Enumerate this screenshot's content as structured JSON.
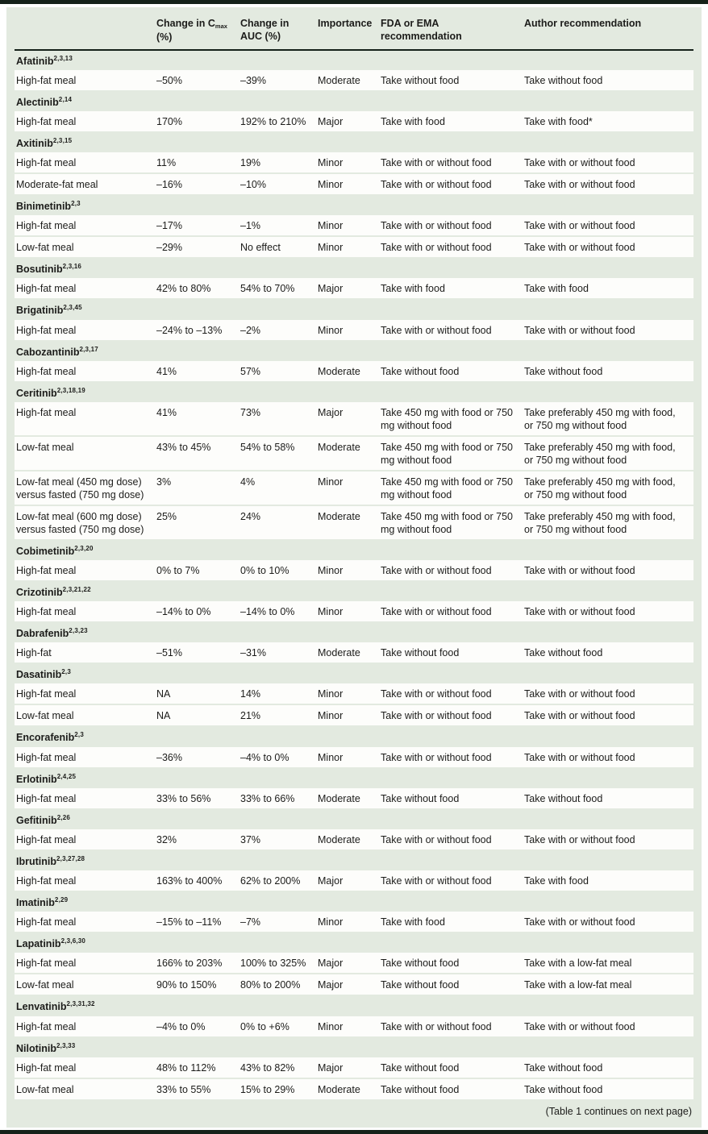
{
  "colors": {
    "page_bg": "#ffffff",
    "panel_bg": "#e3eae0",
    "row_bg": "#fdfdfb",
    "rule_dark": "#152119",
    "text": "#1c1c1a"
  },
  "table": {
    "header": {
      "cmax_prefix": "Change in C",
      "cmax_sub": "max",
      "cmax_line2": "(%)",
      "auc_line1": "Change in",
      "auc_line2": "AUC (%)",
      "importance": "Importance",
      "fda_line1": "FDA or EMA",
      "fda_line2": "recommendation",
      "author": "Author recommendation"
    },
    "footer_note": "(Table 1 continues on next page)",
    "groups": [
      {
        "drug": "Afatinib",
        "refs": "2,3,13",
        "rows": [
          {
            "label": "High-fat meal",
            "cmax": "–50%",
            "auc": "–39%",
            "importance": "Moderate",
            "fda": "Take without food",
            "author": "Take without food"
          }
        ]
      },
      {
        "drug": "Alectinib",
        "refs": "2,14",
        "rows": [
          {
            "label": "High-fat meal",
            "cmax": "170%",
            "auc": "192% to 210%",
            "importance": "Major",
            "fda": "Take with food",
            "author": "Take with food*"
          }
        ]
      },
      {
        "drug": "Axitinib",
        "refs": "2,3,15",
        "rows": [
          {
            "label": "High-fat meal",
            "cmax": "11%",
            "auc": "19%",
            "importance": "Minor",
            "fda": "Take with or without food",
            "author": "Take with or without food"
          },
          {
            "label": "Moderate-fat meal",
            "cmax": "–16%",
            "auc": "–10%",
            "importance": "Minor",
            "fda": "Take with or without food",
            "author": "Take with or without food"
          }
        ]
      },
      {
        "drug": "Binimetinib",
        "refs": "2,3",
        "rows": [
          {
            "label": "High-fat meal",
            "cmax": "–17%",
            "auc": "–1%",
            "importance": "Minor",
            "fda": "Take with or without food",
            "author": "Take with or without food"
          },
          {
            "label": "Low-fat meal",
            "cmax": "–29%",
            "auc": "No effect",
            "importance": "Minor",
            "fda": "Take with or without food",
            "author": "Take with or without food"
          }
        ]
      },
      {
        "drug": "Bosutinib",
        "refs": "2,3,16",
        "rows": [
          {
            "label": "High-fat meal",
            "cmax": "42% to 80%",
            "auc": "54% to 70%",
            "importance": "Major",
            "fda": "Take with food",
            "author": "Take with food"
          }
        ]
      },
      {
        "drug": "Brigatinib",
        "refs": "2,3,45",
        "rows": [
          {
            "label": "High-fat meal",
            "cmax": "–24% to –13%",
            "auc": "–2%",
            "importance": "Minor",
            "fda": "Take with or without food",
            "author": "Take with or without food"
          }
        ]
      },
      {
        "drug": "Cabozantinib",
        "refs": "2,3,17",
        "rows": [
          {
            "label": "High-fat meal",
            "cmax": "41%",
            "auc": "57%",
            "importance": "Moderate",
            "fda": "Take without food",
            "author": "Take without food"
          }
        ]
      },
      {
        "drug": "Ceritinib",
        "refs": "2,3,18,19",
        "rows": [
          {
            "label": "High-fat meal",
            "cmax": "41%",
            "auc": "73%",
            "importance": "Major",
            "fda": "Take 450 mg with food or 750 mg without food",
            "author": "Take preferably 450 mg with food, or 750 mg without food"
          },
          {
            "label": "Low-fat meal",
            "cmax": "43% to 45%",
            "auc": "54% to 58%",
            "importance": "Moderate",
            "fda": "Take 450 mg with food or 750 mg without food",
            "author": "Take preferably 450 mg with food, or 750 mg without food"
          },
          {
            "label": "Low-fat meal (450 mg dose) versus fasted (750 mg dose)",
            "cmax": "3%",
            "auc": "4%",
            "importance": "Minor",
            "fda": "Take 450 mg with food or 750 mg without food",
            "author": "Take preferably 450 mg with food, or 750 mg without food"
          },
          {
            "label": "Low-fat meal (600 mg dose) versus fasted (750 mg dose)",
            "cmax": "25%",
            "auc": "24%",
            "importance": "Moderate",
            "fda": "Take 450 mg with food or 750 mg without food",
            "author": "Take preferably 450 mg with food, or 750 mg without food"
          }
        ]
      },
      {
        "drug": "Cobimetinib",
        "refs": "2,3,20",
        "rows": [
          {
            "label": "High-fat meal",
            "cmax": "0% to 7%",
            "auc": "0% to 10%",
            "importance": "Minor",
            "fda": "Take with or without food",
            "author": "Take with or without food"
          }
        ]
      },
      {
        "drug": "Crizotinib",
        "refs": "2,3,21,22",
        "rows": [
          {
            "label": "High-fat meal",
            "cmax": "–14% to 0%",
            "auc": "–14% to 0%",
            "importance": "Minor",
            "fda": "Take with or without food",
            "author": "Take with or without food"
          }
        ]
      },
      {
        "drug": "Dabrafenib",
        "refs": "2,3,23",
        "rows": [
          {
            "label": "High-fat",
            "cmax": "–51%",
            "auc": "–31%",
            "importance": "Moderate",
            "fda": "Take without food",
            "author": "Take without food"
          }
        ]
      },
      {
        "drug": "Dasatinib",
        "refs": "2,3",
        "rows": [
          {
            "label": "High-fat meal",
            "cmax": "NA",
            "auc": "14%",
            "importance": "Minor",
            "fda": "Take with or without food",
            "author": "Take with or without food"
          },
          {
            "label": "Low-fat meal",
            "cmax": "NA",
            "auc": "21%",
            "importance": "Minor",
            "fda": "Take with or without food",
            "author": "Take with or without food"
          }
        ]
      },
      {
        "drug": "Encorafenib",
        "refs": "2,3",
        "rows": [
          {
            "label": "High-fat meal",
            "cmax": "–36%",
            "auc": "–4% to 0%",
            "importance": "Minor",
            "fda": "Take with or without food",
            "author": "Take with or without food"
          }
        ]
      },
      {
        "drug": "Erlotinib",
        "refs": "2,4,25",
        "rows": [
          {
            "label": "High-fat meal",
            "cmax": "33% to 56%",
            "auc": "33% to 66%",
            "importance": "Moderate",
            "fda": "Take without food",
            "author": "Take without food"
          }
        ]
      },
      {
        "drug": "Gefitinib",
        "refs": "2,26",
        "rows": [
          {
            "label": "High-fat meal",
            "cmax": "32%",
            "auc": "37%",
            "importance": "Moderate",
            "fda": "Take with or without food",
            "author": "Take with or without food"
          }
        ]
      },
      {
        "drug": "Ibrutinib",
        "refs": "2,3,27,28",
        "rows": [
          {
            "label": "High-fat meal",
            "cmax": "163% to 400%",
            "auc": "62% to 200%",
            "importance": "Major",
            "fda": "Take with or without food",
            "author": "Take with food"
          }
        ]
      },
      {
        "drug": "Imatinib",
        "refs": "2,29",
        "rows": [
          {
            "label": "High-fat meal",
            "cmax": "–15% to –11%",
            "auc": "–7%",
            "importance": "Minor",
            "fda": "Take with food",
            "author": "Take with or without food"
          }
        ]
      },
      {
        "drug": "Lapatinib",
        "refs": "2,3,6,30",
        "rows": [
          {
            "label": "High-fat meal",
            "cmax": "166% to 203%",
            "auc": "100% to 325%",
            "importance": "Major",
            "fda": "Take without food",
            "author": "Take with a low-fat meal"
          },
          {
            "label": "Low-fat meal",
            "cmax": "90% to 150%",
            "auc": "80% to 200%",
            "importance": "Major",
            "fda": "Take without food",
            "author": "Take with a low-fat meal"
          }
        ]
      },
      {
        "drug": "Lenvatinib",
        "refs": "2,3,31,32",
        "rows": [
          {
            "label": "High-fat meal",
            "cmax": "–4% to 0%",
            "auc": "0% to +6%",
            "importance": "Minor",
            "fda": "Take with or without food",
            "author": "Take with or without food"
          }
        ]
      },
      {
        "drug": "Nilotinib",
        "refs": "2,3,33",
        "rows": [
          {
            "label": "High-fat meal",
            "cmax": "48% to 112%",
            "auc": "43% to 82%",
            "importance": "Major",
            "fda": "Take without food",
            "author": "Take without food"
          },
          {
            "label": "Low-fat meal",
            "cmax": "33% to 55%",
            "auc": "15% to 29%",
            "importance": "Moderate",
            "fda": "Take without food",
            "author": "Take without food"
          }
        ]
      }
    ]
  }
}
